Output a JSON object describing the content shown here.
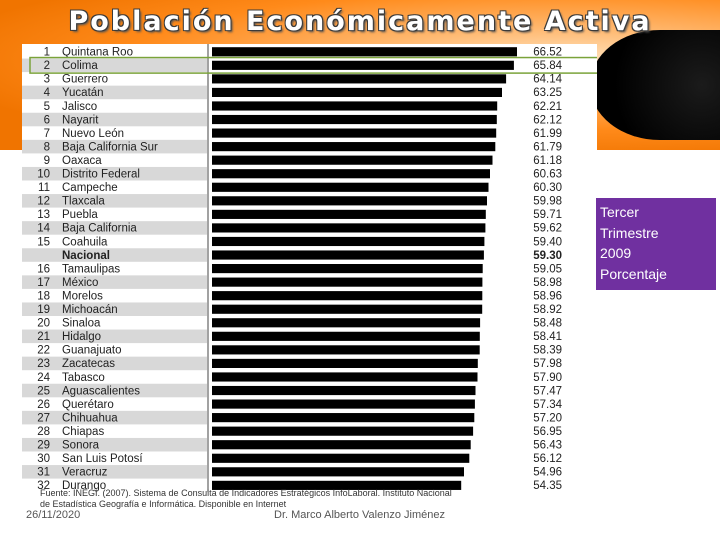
{
  "title": "Población Económicamente Activa",
  "side_note": {
    "lines": [
      "Tercer",
      "Trimestre",
      "2009",
      "Porcentaje"
    ]
  },
  "footer": {
    "date": "26/11/2020",
    "author": "Dr. Marco Alberto Valenzo Jiménez",
    "source": "Fuente: INEGI. (2007). Sistema de Consulta de Indicadores Estratégicos InfoLaboral. Instituto Nacional de Estadística Geografía e Informática. Disponible en Internet"
  },
  "colors": {
    "bar": "#000000",
    "highlight_border": "#7aa33a",
    "stripe": "#d8d8d8",
    "note_bg": "#7030a0"
  },
  "chart_data": {
    "type": "bar",
    "orientation": "horizontal",
    "title": "Población Económicamente Activa",
    "xlim": [
      0,
      66.52
    ],
    "highlight_index": 1,
    "rows": [
      {
        "rank": "1",
        "label": "Quintana Roo",
        "value": 66.52
      },
      {
        "rank": "2",
        "label": "Colima",
        "value": 65.84
      },
      {
        "rank": "3",
        "label": "Guerrero",
        "value": 64.14
      },
      {
        "rank": "4",
        "label": "Yucatán",
        "value": 63.25
      },
      {
        "rank": "5",
        "label": "Jalisco",
        "value": 62.21
      },
      {
        "rank": "6",
        "label": "Nayarit",
        "value": 62.12
      },
      {
        "rank": "7",
        "label": "Nuevo León",
        "value": 61.99
      },
      {
        "rank": "8",
        "label": "Baja California Sur",
        "value": 61.79
      },
      {
        "rank": "9",
        "label": "Oaxaca",
        "value": 61.18
      },
      {
        "rank": "10",
        "label": "Distrito Federal",
        "value": 60.63
      },
      {
        "rank": "11",
        "label": "Campeche",
        "value": 60.3
      },
      {
        "rank": "12",
        "label": "Tlaxcala",
        "value": 59.98
      },
      {
        "rank": "13",
        "label": "Puebla",
        "value": 59.71
      },
      {
        "rank": "14",
        "label": "Baja California",
        "value": 59.62
      },
      {
        "rank": "15",
        "label": "Coahuila",
        "value": 59.4
      },
      {
        "rank": "",
        "label": "Nacional",
        "value": 59.3,
        "bold": true
      },
      {
        "rank": "16",
        "label": "Tamaulipas",
        "value": 59.05
      },
      {
        "rank": "17",
        "label": "México",
        "value": 58.98
      },
      {
        "rank": "18",
        "label": "Morelos",
        "value": 58.96
      },
      {
        "rank": "19",
        "label": "Michoacán",
        "value": 58.92
      },
      {
        "rank": "20",
        "label": "Sinaloa",
        "value": 58.48
      },
      {
        "rank": "21",
        "label": "Hidalgo",
        "value": 58.41
      },
      {
        "rank": "22",
        "label": "Guanajuato",
        "value": 58.39
      },
      {
        "rank": "23",
        "label": "Zacatecas",
        "value": 57.98
      },
      {
        "rank": "24",
        "label": "Tabasco",
        "value": 57.9
      },
      {
        "rank": "25",
        "label": "Aguascalientes",
        "value": 57.47
      },
      {
        "rank": "26",
        "label": "Querétaro",
        "value": 57.34
      },
      {
        "rank": "27",
        "label": "Chihuahua",
        "value": 57.2
      },
      {
        "rank": "28",
        "label": "Chiapas",
        "value": 56.95
      },
      {
        "rank": "29",
        "label": "Sonora",
        "value": 56.43
      },
      {
        "rank": "30",
        "label": "San Luis Potosí",
        "value": 56.12
      },
      {
        "rank": "31",
        "label": "Veracruz",
        "value": 54.96
      },
      {
        "rank": "32",
        "label": "Durango",
        "value": 54.35
      }
    ]
  }
}
